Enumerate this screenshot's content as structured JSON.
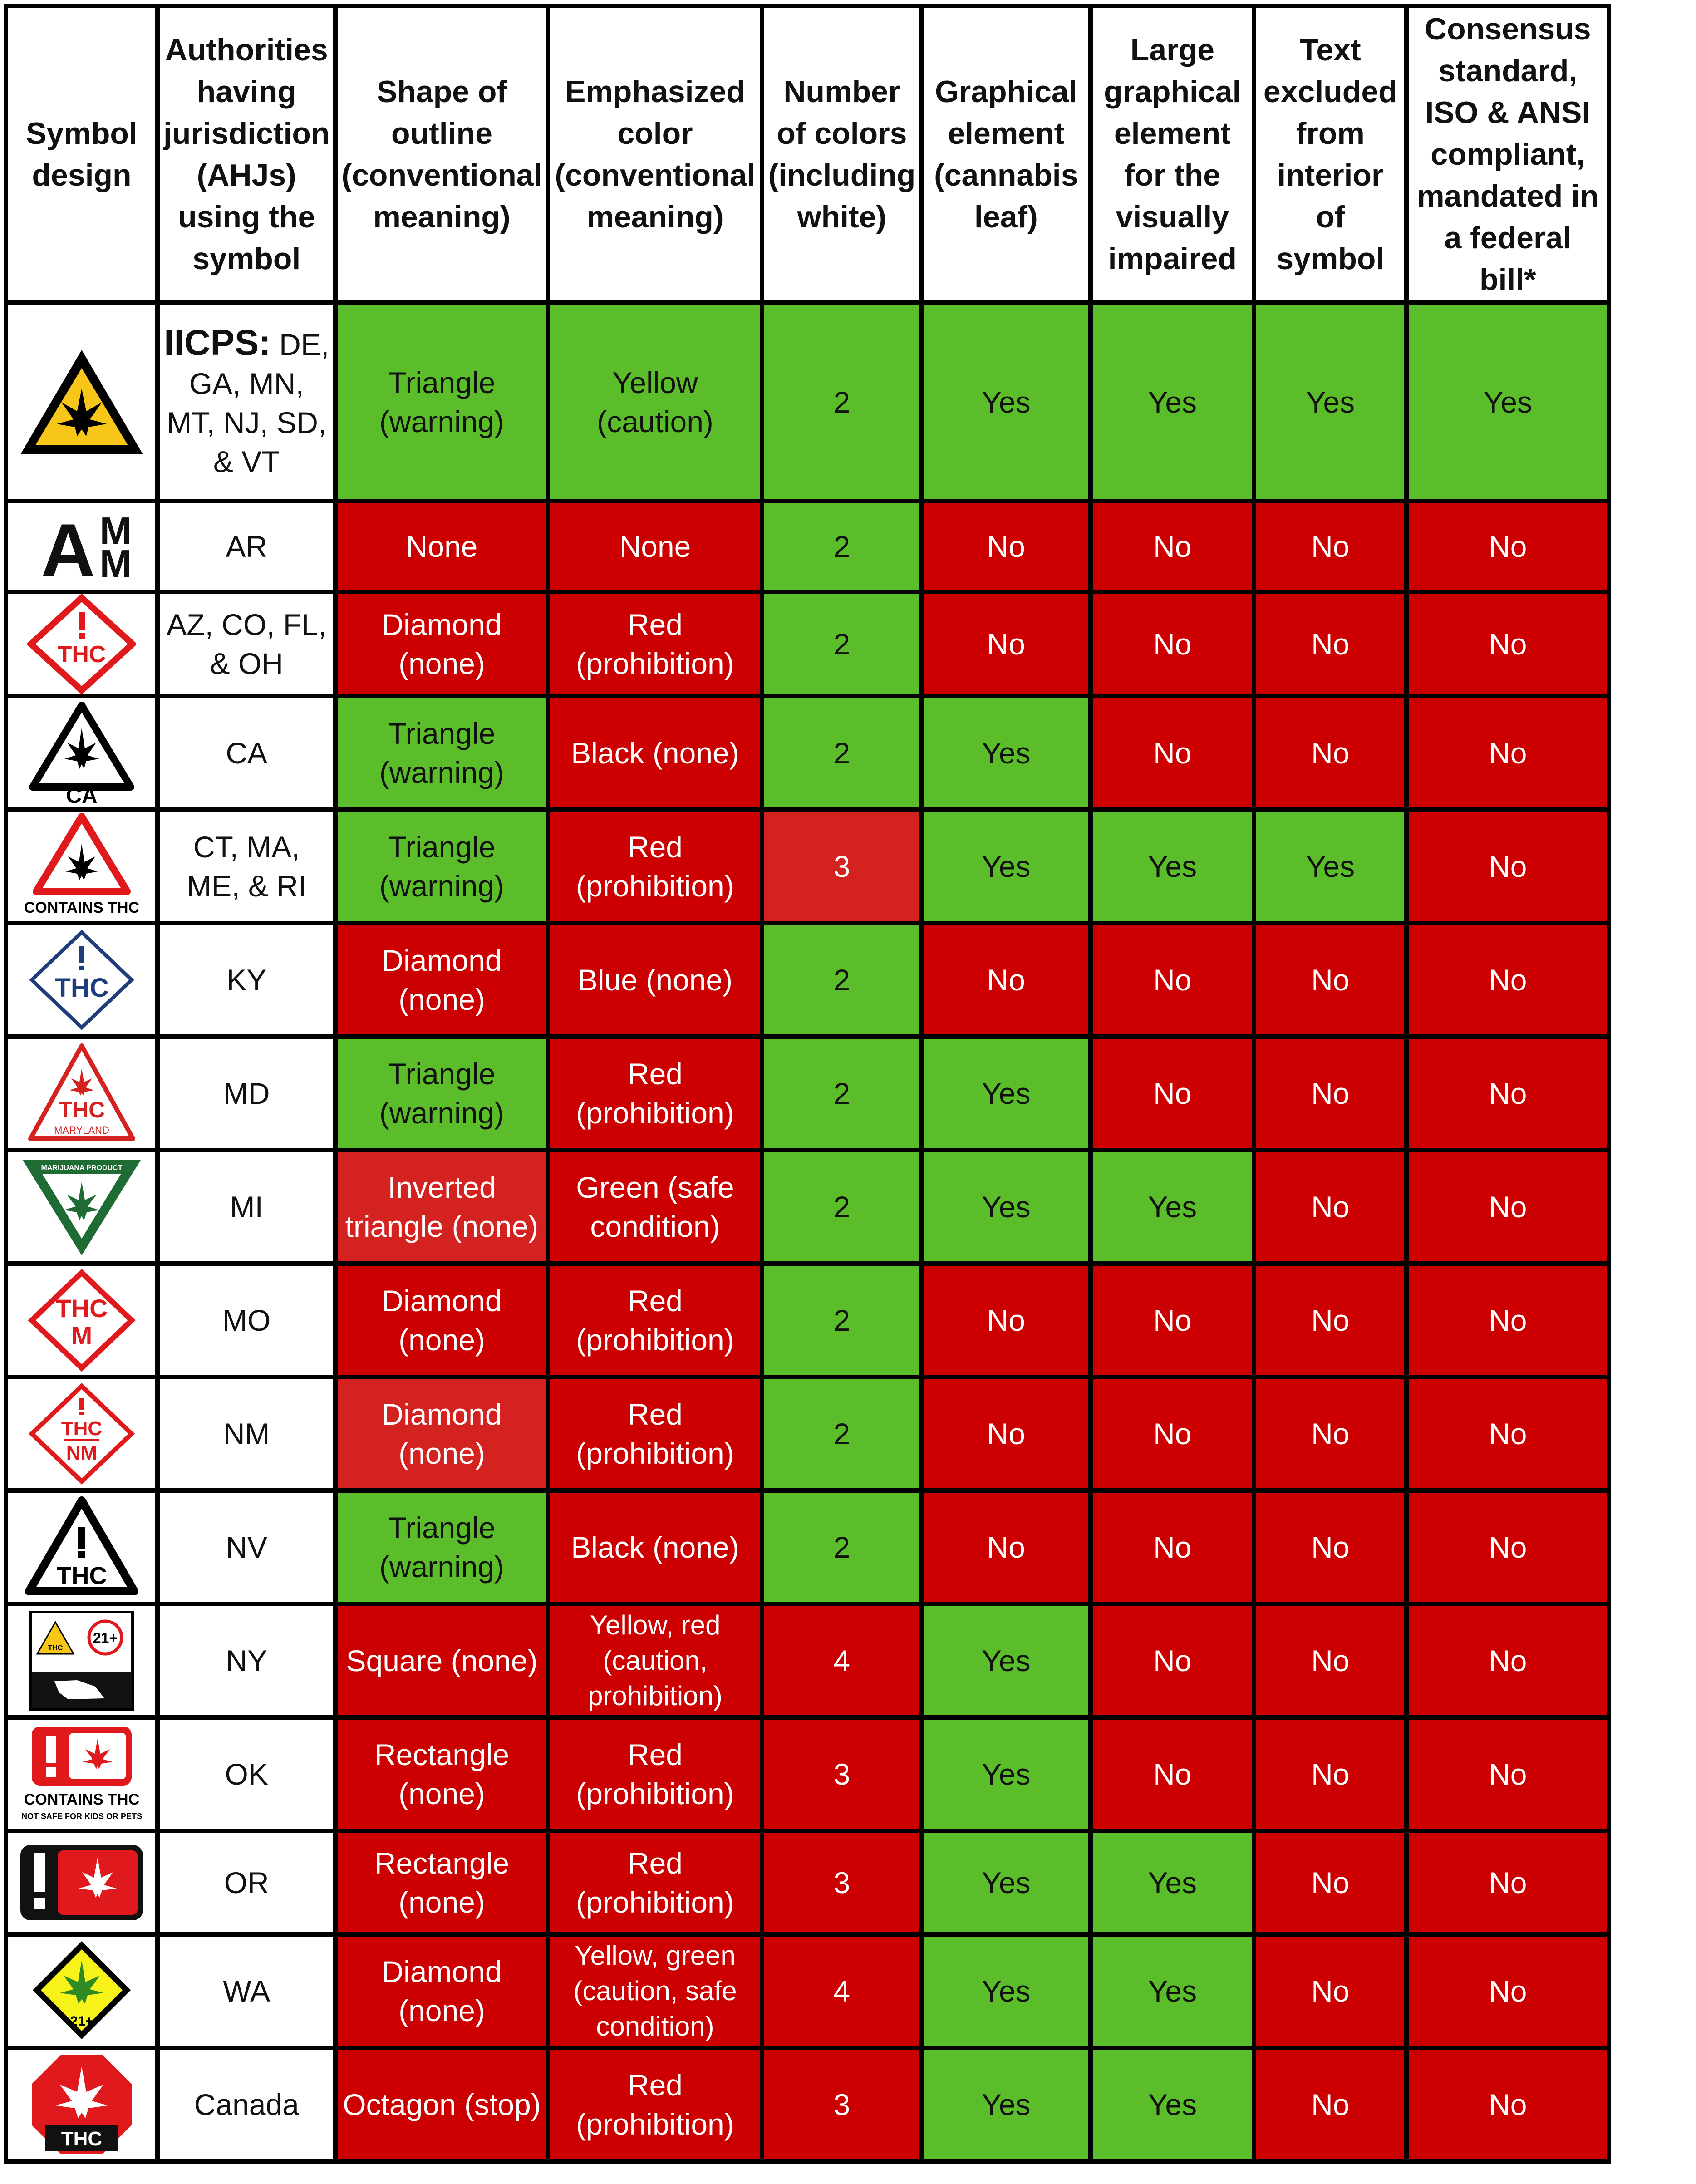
{
  "headers": [
    "Symbol design",
    "Authorities having jurisdiction (AHJs) using the symbol",
    "Shape of outline (conventional meaning)",
    "Emphasized color (conventional meaning)",
    "Number of colors (including white)",
    "Graphical element (cannabis leaf)",
    "Large graphical element for the visually impaired",
    "Text excluded from interior of symbol",
    "Consensus standard, ISO & ANSI compliant, mandated in a federal bill*"
  ],
  "rows": [
    {
      "symbol": "iicps-symbol",
      "ahj_bold": "IICPS:",
      "ahj": "DE, GA, MN, MT, NJ, SD, & VT",
      "shape": "Triangle (warning)",
      "color": "Yellow (caution)",
      "num": "2",
      "leaf": "Yes",
      "large": "Yes",
      "text_excl": "Yes",
      "consensus": "Yes"
    },
    {
      "symbol": "ar-symbol",
      "symbol_text": "AMM",
      "ahj": "AR",
      "shape": "None",
      "color": "None",
      "num": "2",
      "leaf": "No",
      "large": "No",
      "text_excl": "No",
      "consensus": "No"
    },
    {
      "symbol": "az-co-fl-oh-symbol",
      "symbol_text": "THC",
      "ahj": "AZ, CO, FL, & OH",
      "shape": "Diamond (none)",
      "color": "Red (prohibition)",
      "num": "2",
      "leaf": "No",
      "large": "No",
      "text_excl": "No",
      "consensus": "No"
    },
    {
      "symbol": "ca-symbol",
      "symbol_text": "CA",
      "ahj": "CA",
      "shape": "Triangle (warning)",
      "color": "Black (none)",
      "num": "2",
      "leaf": "Yes",
      "large": "No",
      "text_excl": "No",
      "consensus": "No"
    },
    {
      "symbol": "ct-ma-me-ri-symbol",
      "symbol_text": "CONTAINS THC",
      "ahj": "CT, MA, ME, & RI",
      "shape": "Triangle (warning)",
      "color": "Red (prohibition)",
      "num": "3",
      "leaf": "Yes",
      "large": "Yes",
      "text_excl": "Yes",
      "consensus": "No"
    },
    {
      "symbol": "ky-symbol",
      "symbol_text": "THC",
      "ahj": "KY",
      "shape": "Diamond (none)",
      "color": "Blue (none)",
      "num": "2",
      "leaf": "No",
      "large": "No",
      "text_excl": "No",
      "consensus": "No"
    },
    {
      "symbol": "md-symbol",
      "symbol_text": "THC",
      "symbol_subtext": "MARYLAND",
      "ahj": "MD",
      "shape": "Triangle (warning)",
      "color": "Red (prohibition)",
      "num": "2",
      "leaf": "Yes",
      "large": "No",
      "text_excl": "No",
      "consensus": "No"
    },
    {
      "symbol": "mi-symbol",
      "symbol_text": "MARIJUANA PRODUCT",
      "ahj": "MI",
      "shape": "Inverted triangle (none)",
      "color": "Green (safe condition)",
      "num": "2",
      "leaf": "Yes",
      "large": "Yes",
      "text_excl": "No",
      "consensus": "No"
    },
    {
      "symbol": "mo-symbol",
      "symbol_text": "THC",
      "symbol_subtext": "M",
      "ahj": "MO",
      "shape": "Diamond (none)",
      "color": "Red (prohibition)",
      "num": "2",
      "leaf": "No",
      "large": "No",
      "text_excl": "No",
      "consensus": "No"
    },
    {
      "symbol": "nm-symbol",
      "symbol_text": "THC",
      "symbol_subtext": "NM",
      "ahj": "NM",
      "shape": "Diamond (none)",
      "color": "Red (prohibition)",
      "num": "2",
      "leaf": "No",
      "large": "No",
      "text_excl": "No",
      "consensus": "No"
    },
    {
      "symbol": "nv-symbol",
      "symbol_text": "THC",
      "ahj": "NV",
      "shape": "Triangle (warning)",
      "color": "Black (none)",
      "num": "2",
      "leaf": "No",
      "large": "No",
      "text_excl": "No",
      "consensus": "No"
    },
    {
      "symbol": "ny-symbol",
      "symbol_text": "THC",
      "symbol_subtext": "21+",
      "ahj": "NY",
      "shape": "Square (none)",
      "color": "Yellow, red (caution, prohibition)",
      "num": "4",
      "leaf": "Yes",
      "large": "No",
      "text_excl": "No",
      "consensus": "No"
    },
    {
      "symbol": "ok-symbol",
      "symbol_text": "CONTAINS THC",
      "symbol_subtext": "NOT SAFE FOR KIDS OR PETS",
      "ahj": "OK",
      "shape": "Rectangle (none)",
      "color": "Red (prohibition)",
      "num": "3",
      "leaf": "Yes",
      "large": "No",
      "text_excl": "No",
      "consensus": "No"
    },
    {
      "symbol": "or-symbol",
      "ahj": "OR",
      "shape": "Rectangle (none)",
      "color": "Red (prohibition)",
      "num": "3",
      "leaf": "Yes",
      "large": "Yes",
      "text_excl": "No",
      "consensus": "No"
    },
    {
      "symbol": "wa-symbol",
      "symbol_text": "21+",
      "ahj": "WA",
      "shape": "Diamond (none)",
      "color": "Yellow, green (caution, safe condition)",
      "num": "4",
      "leaf": "Yes",
      "large": "Yes",
      "text_excl": "No",
      "consensus": "No"
    },
    {
      "symbol": "canada-symbol",
      "symbol_text": "THC",
      "ahj": "Canada",
      "shape": "Octagon (stop)",
      "color": "Red (prohibition)",
      "num": "3",
      "leaf": "Yes",
      "large": "Yes",
      "text_excl": "No",
      "consensus": "No"
    }
  ],
  "colors": {
    "green": "#5cbd2a",
    "red": "#cc0000",
    "light_red": "#d42221",
    "yellow": "#f7c619",
    "black": "#000000",
    "blue": "#1f3d7a"
  }
}
